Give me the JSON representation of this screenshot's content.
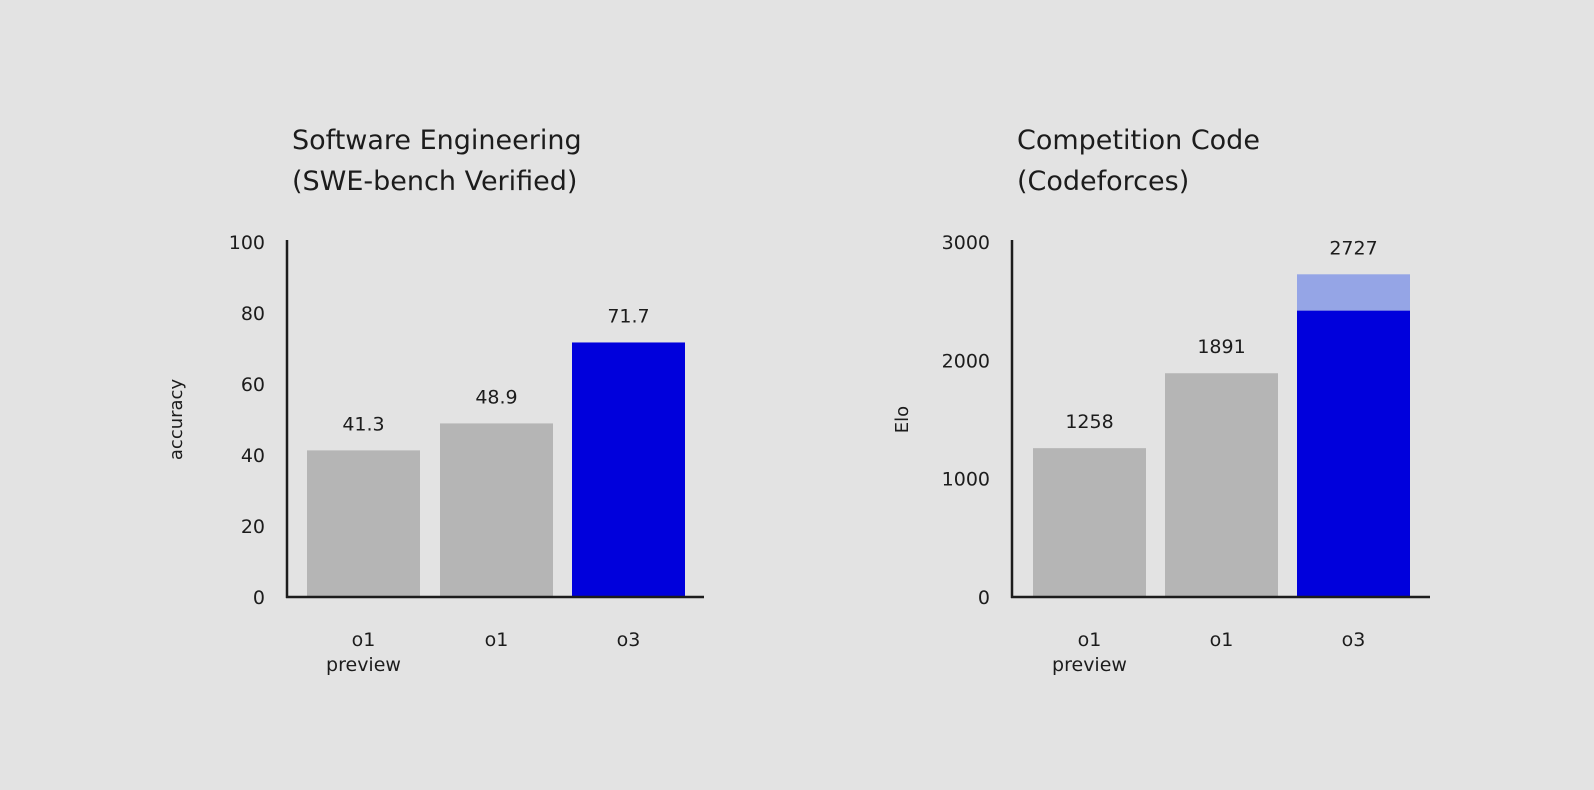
{
  "colors": {
    "background": "#e3e3e3",
    "gray_bar": "#b5b5b5",
    "blue_bar": "#0000dc",
    "light_blue_bar": "#95a5e6",
    "text": "#1c1c1c"
  },
  "chart_data": [
    {
      "type": "bar",
      "title": [
        "Software Engineering",
        "(SWE-bench Verified)"
      ],
      "ylabel": "accuracy",
      "ylim": [
        0,
        100
      ],
      "yticks": [
        0,
        20,
        40,
        60,
        80,
        100
      ],
      "categories": [
        [
          "o1",
          "preview"
        ],
        [
          "o1"
        ],
        [
          "o3"
        ]
      ],
      "values": [
        41.3,
        48.9,
        71.7
      ],
      "value_labels": [
        "41.3",
        "48.9",
        "71.7"
      ],
      "bar_colors": [
        "#b5b5b5",
        "#b5b5b5",
        "#0000dc"
      ],
      "grid": false
    },
    {
      "type": "bar",
      "title": [
        "Competition Code",
        "(Codeforces)"
      ],
      "ylabel": "Elo",
      "ylim": [
        0,
        3000
      ],
      "yticks": [
        0,
        1000,
        2000,
        3000
      ],
      "categories": [
        [
          "o1",
          "preview"
        ],
        [
          "o1"
        ],
        [
          "o3"
        ]
      ],
      "values": [
        1258,
        1891,
        2727
      ],
      "stacked_base": [
        null,
        null,
        2420
      ],
      "value_labels": [
        "1258",
        "1891",
        "2727"
      ],
      "bar_colors": [
        "#b5b5b5",
        "#b5b5b5",
        "#0000dc"
      ],
      "top_segment_color": "#95a5e6",
      "grid": false
    }
  ]
}
